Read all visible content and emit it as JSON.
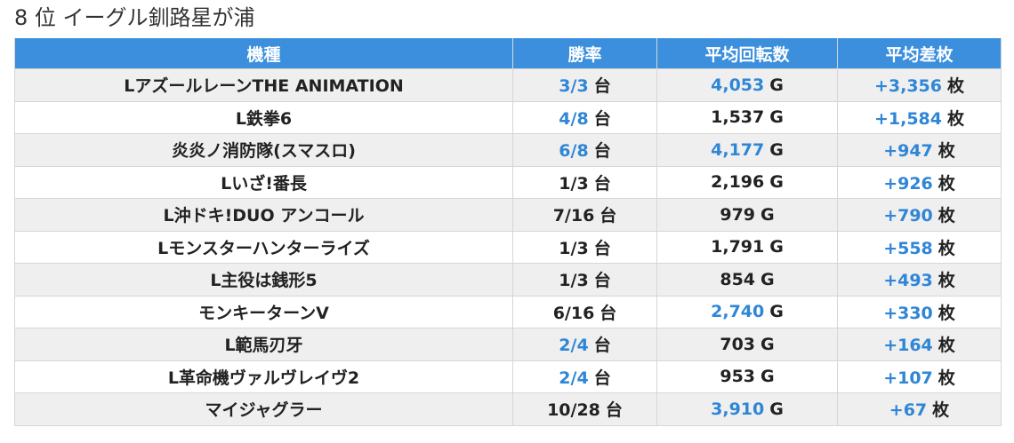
{
  "title": "8 位 イーグル釧路星が浦",
  "columns": [
    "機種",
    "勝率",
    "平均回転数",
    "平均差枚"
  ],
  "units": {
    "win": "台",
    "spins": "G",
    "diff": "枚"
  },
  "colors": {
    "header_bg": "#3b8fdc",
    "highlight": "#2f86d6",
    "stripe": "#efefef"
  },
  "rows": [
    {
      "machine": "LアズールレーンTHE ANIMATION",
      "win": "3/3",
      "win_hl": true,
      "spins": "4,053",
      "spins_hl": true,
      "diff": "+3,356"
    },
    {
      "machine": "L鉄拳6",
      "win": "4/8",
      "win_hl": true,
      "spins": "1,537",
      "spins_hl": false,
      "diff": "+1,584"
    },
    {
      "machine": "炎炎ノ消防隊(スマスロ)",
      "win": "6/8",
      "win_hl": true,
      "spins": "4,177",
      "spins_hl": true,
      "diff": "+947"
    },
    {
      "machine": "Lいざ!番長",
      "win": "1/3",
      "win_hl": false,
      "spins": "2,196",
      "spins_hl": false,
      "diff": "+926"
    },
    {
      "machine": "L沖ドキ!DUO アンコール",
      "win": "7/16",
      "win_hl": false,
      "spins": "979",
      "spins_hl": false,
      "diff": "+790"
    },
    {
      "machine": "Lモンスターハンターライズ",
      "win": "1/3",
      "win_hl": false,
      "spins": "1,791",
      "spins_hl": false,
      "diff": "+558"
    },
    {
      "machine": "L主役は銭形5",
      "win": "1/3",
      "win_hl": false,
      "spins": "854",
      "spins_hl": false,
      "diff": "+493"
    },
    {
      "machine": "モンキーターンV",
      "win": "6/16",
      "win_hl": false,
      "spins": "2,740",
      "spins_hl": true,
      "diff": "+330"
    },
    {
      "machine": "L範馬刃牙",
      "win": "2/4",
      "win_hl": true,
      "spins": "703",
      "spins_hl": false,
      "diff": "+164"
    },
    {
      "machine": "L革命機ヴァルヴレイヴ2",
      "win": "2/4",
      "win_hl": true,
      "spins": "953",
      "spins_hl": false,
      "diff": "+107"
    },
    {
      "machine": "マイジャグラー",
      "win": "10/28",
      "win_hl": false,
      "spins": "3,910",
      "spins_hl": true,
      "diff": "+67"
    }
  ]
}
